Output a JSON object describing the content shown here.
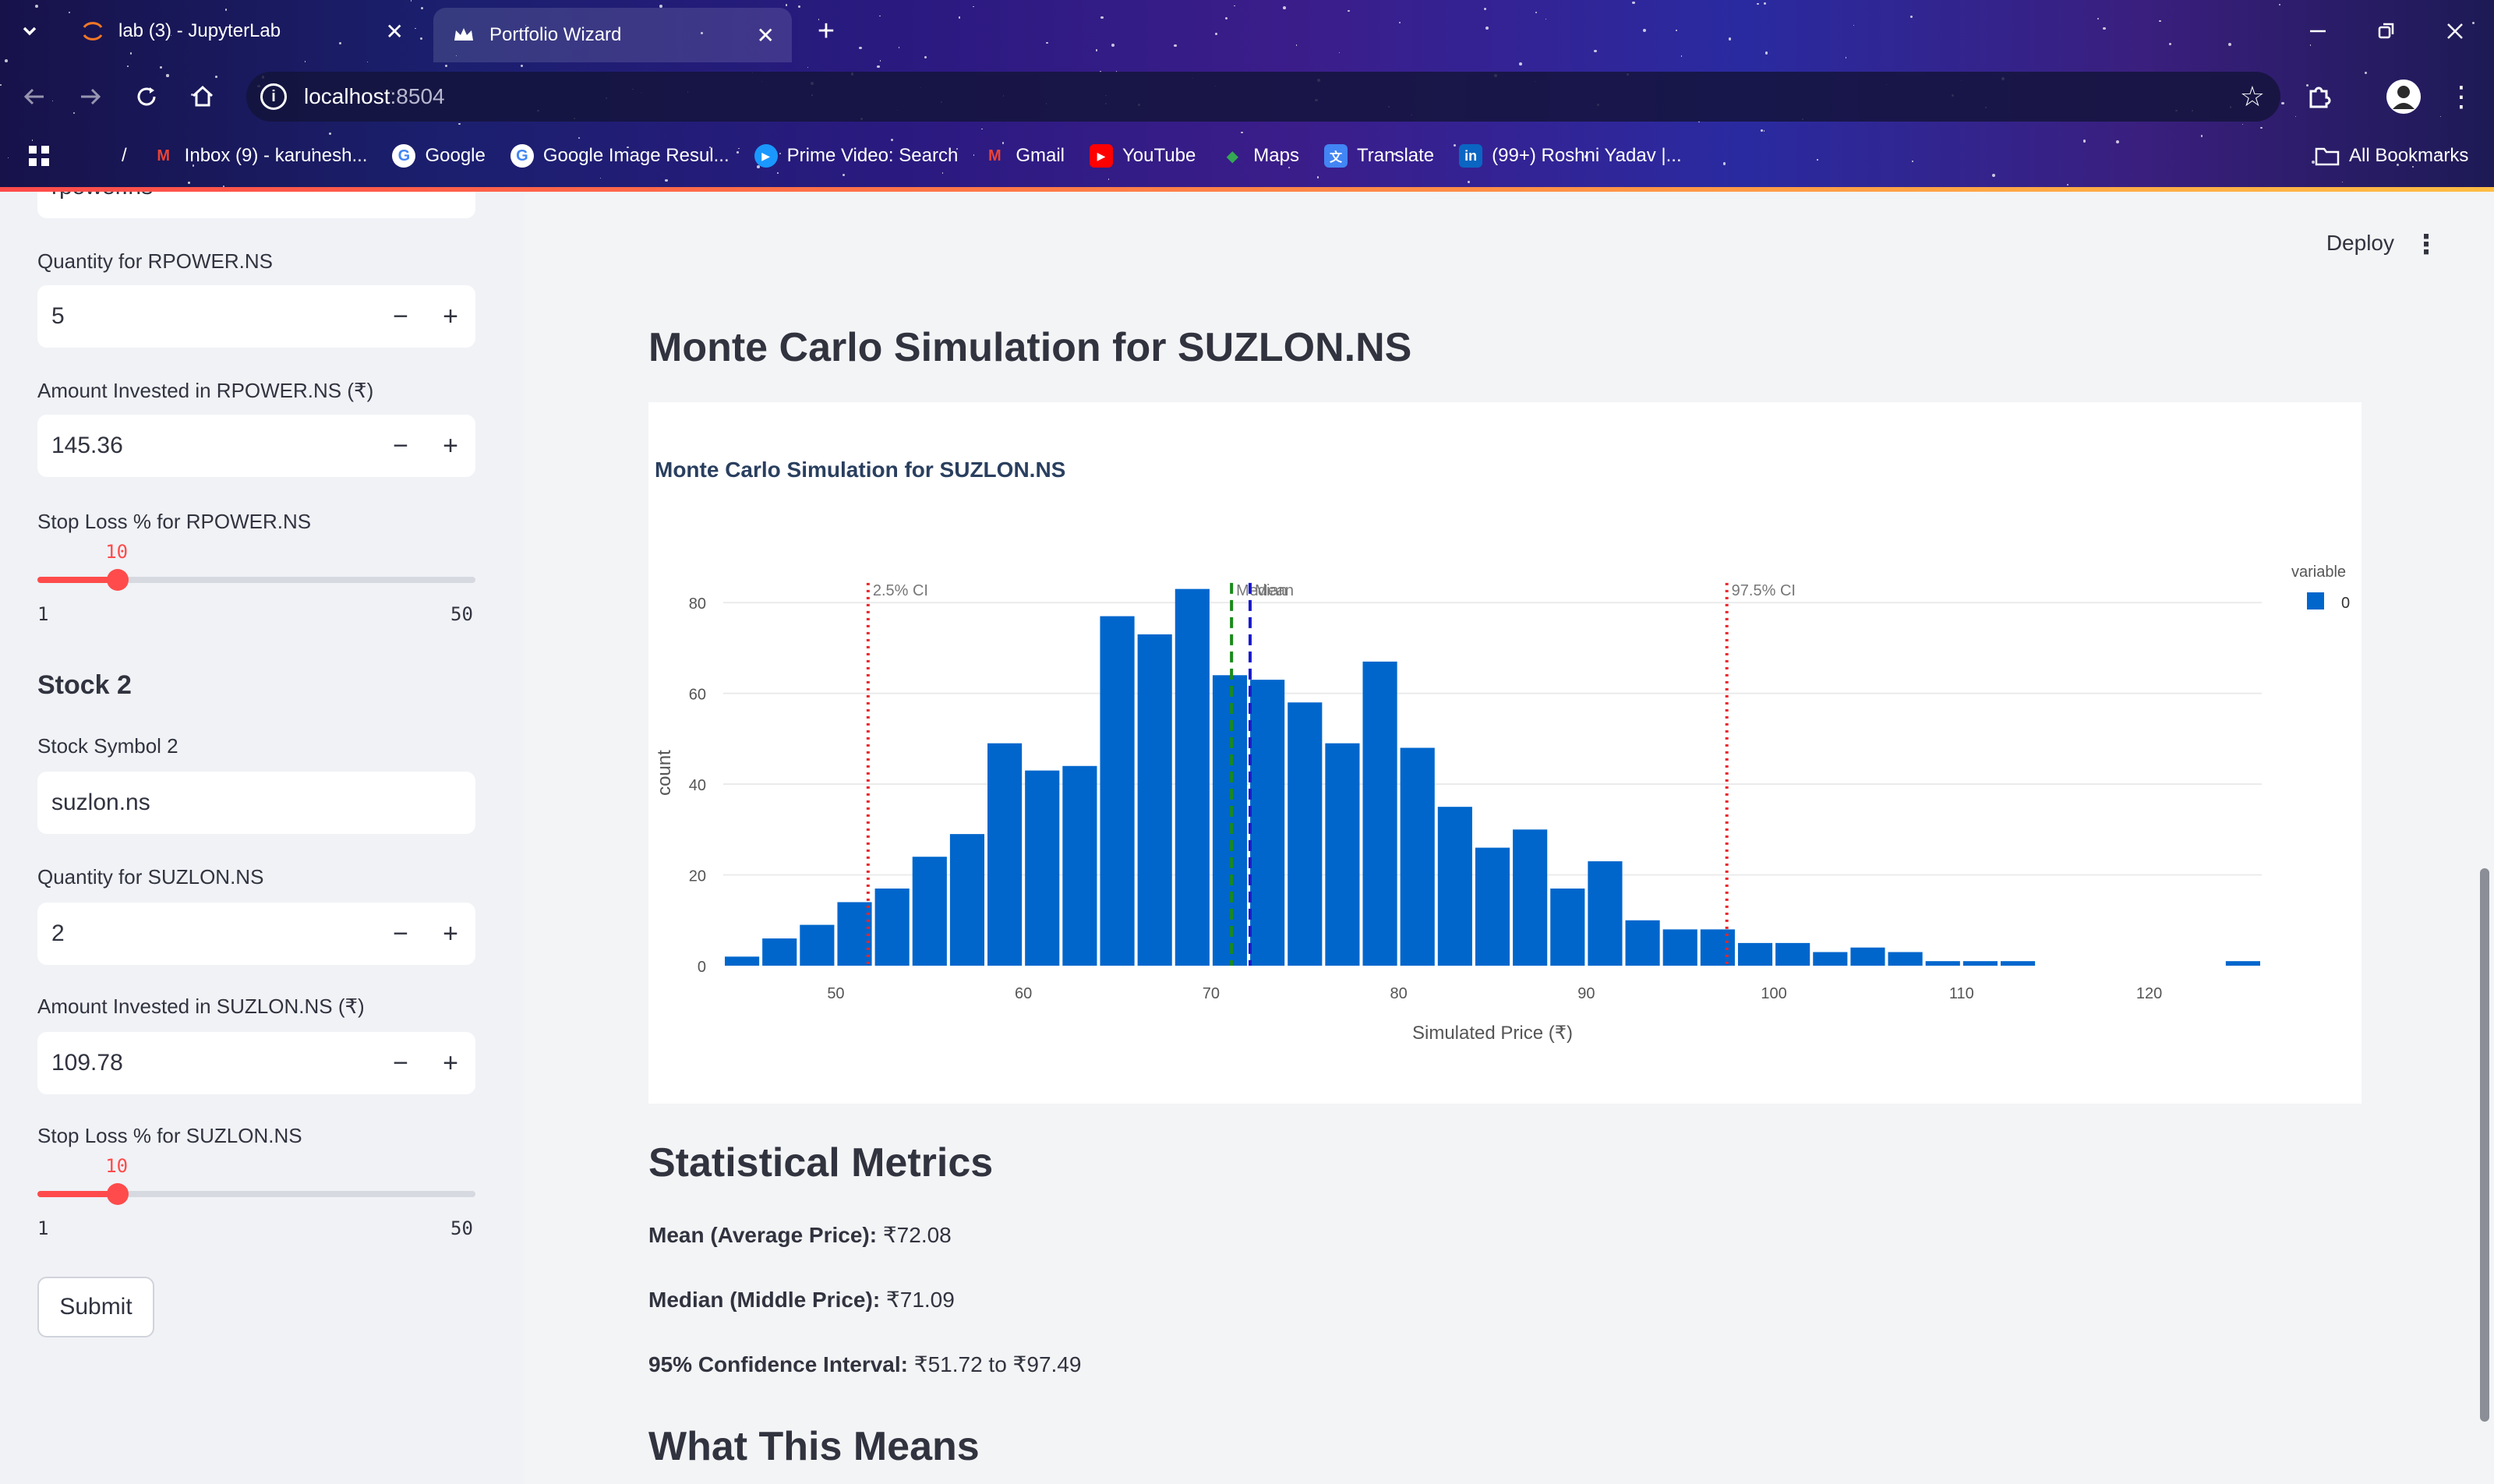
{
  "browser": {
    "tabs": [
      {
        "title": "lab (3) - JupyterLab",
        "active": false
      },
      {
        "title": "Portfolio Wizard",
        "active": true
      }
    ],
    "url_host": "localhost",
    "url_port": ":8504",
    "bookmarks": [
      {
        "label": "/",
        "icon": "folder-icon",
        "color": "#1a8a4a"
      },
      {
        "label": "Inbox (9) - karunesh...",
        "icon": "gmail-icon",
        "color": "#ea4335"
      },
      {
        "label": "Google",
        "icon": "google-icon",
        "color": "#ffffff"
      },
      {
        "label": "Google Image Resul...",
        "icon": "google-icon",
        "color": "#ffffff"
      },
      {
        "label": "Prime Video: Search",
        "icon": "prime-icon",
        "color": "#1a98ff"
      },
      {
        "label": "Gmail",
        "icon": "gmail-icon",
        "color": "#ea4335"
      },
      {
        "label": "YouTube",
        "icon": "youtube-icon",
        "color": "#ff0000"
      },
      {
        "label": "Maps",
        "icon": "maps-icon",
        "color": "#34a853"
      },
      {
        "label": "Translate",
        "icon": "translate-icon",
        "color": "#4285f4"
      },
      {
        "label": "(99+) Roshni Yadav |...",
        "icon": "linkedin-icon",
        "color": "#0a66c2"
      }
    ],
    "all_bookmarks": "All Bookmarks"
  },
  "sidebar": {
    "top_input_partial": "rpower.ns",
    "rpower": {
      "quantity_label": "Quantity for RPOWER.NS",
      "quantity_value": "5",
      "amount_label": "Amount Invested in RPOWER.NS (₹)",
      "amount_value": "145.36",
      "stoploss_label": "Stop Loss % for RPOWER.NS",
      "stoploss_value": "10",
      "stoploss_fraction": 0.1837,
      "min": "1",
      "max": "50"
    },
    "stock2_heading": "Stock 2",
    "suzlon": {
      "symbol_label": "Stock Symbol 2",
      "symbol_value": "suzlon.ns",
      "quantity_label": "Quantity for SUZLON.NS",
      "quantity_value": "2",
      "amount_label": "Amount Invested in SUZLON.NS (₹)",
      "amount_value": "109.78",
      "stoploss_label": "Stop Loss % for SUZLON.NS",
      "stoploss_value": "10",
      "stoploss_fraction": 0.1837,
      "min": "1",
      "max": "50"
    },
    "submit_label": "Submit"
  },
  "main": {
    "deploy_label": "Deploy",
    "page_title": "Monte Carlo Simulation for SUZLON.NS",
    "metrics_heading": "Statistical Metrics",
    "mean_label": "Mean (Average Price):",
    "mean_value": " ₹72.08",
    "median_label": "Median (Middle Price):",
    "median_value": " ₹71.09",
    "ci_label": "95% Confidence Interval:",
    "ci_value": " ₹51.72 to ₹97.49",
    "what_heading": "What This Means"
  },
  "chart_data": {
    "type": "bar",
    "title": "Monte Carlo Simulation for SUZLON.NS",
    "xlabel": "Simulated Price (₹)",
    "ylabel": "count",
    "legend_title": "variable",
    "series": [
      {
        "name": "0",
        "color": "#0066cc"
      }
    ],
    "bin_width": 2,
    "bins": [
      {
        "x": 45,
        "count": 2
      },
      {
        "x": 47,
        "count": 6
      },
      {
        "x": 49,
        "count": 9
      },
      {
        "x": 51,
        "count": 14
      },
      {
        "x": 53,
        "count": 17
      },
      {
        "x": 55,
        "count": 24
      },
      {
        "x": 57,
        "count": 29
      },
      {
        "x": 59,
        "count": 49
      },
      {
        "x": 61,
        "count": 43
      },
      {
        "x": 63,
        "count": 44
      },
      {
        "x": 65,
        "count": 77
      },
      {
        "x": 67,
        "count": 73
      },
      {
        "x": 69,
        "count": 83
      },
      {
        "x": 71,
        "count": 64
      },
      {
        "x": 73,
        "count": 63
      },
      {
        "x": 75,
        "count": 58
      },
      {
        "x": 77,
        "count": 49
      },
      {
        "x": 79,
        "count": 67
      },
      {
        "x": 81,
        "count": 48
      },
      {
        "x": 83,
        "count": 35
      },
      {
        "x": 85,
        "count": 26
      },
      {
        "x": 87,
        "count": 30
      },
      {
        "x": 89,
        "count": 17
      },
      {
        "x": 91,
        "count": 23
      },
      {
        "x": 93,
        "count": 10
      },
      {
        "x": 95,
        "count": 8
      },
      {
        "x": 97,
        "count": 8
      },
      {
        "x": 99,
        "count": 5
      },
      {
        "x": 101,
        "count": 5
      },
      {
        "x": 103,
        "count": 3
      },
      {
        "x": 105,
        "count": 4
      },
      {
        "x": 107,
        "count": 3
      },
      {
        "x": 109,
        "count": 1
      },
      {
        "x": 111,
        "count": 1
      },
      {
        "x": 113,
        "count": 1
      },
      {
        "x": 125,
        "count": 1
      }
    ],
    "xlim": [
      44,
      126
    ],
    "ylim": [
      0,
      85
    ],
    "xticks": [
      50,
      60,
      70,
      80,
      90,
      100,
      110,
      120
    ],
    "yticks": [
      0,
      20,
      40,
      60,
      80
    ],
    "vlines": [
      {
        "x": 51.72,
        "label": "2.5% CI",
        "color": "#e8262a",
        "style": "dot"
      },
      {
        "x": 71.09,
        "label": "Median",
        "color": "#1a8a1a",
        "style": "dash"
      },
      {
        "x": 72.08,
        "label": "Mean",
        "color": "#1a1acc",
        "style": "dash"
      },
      {
        "x": 97.49,
        "label": "97.5% CI",
        "color": "#e8262a",
        "style": "dot"
      }
    ],
    "grid": true,
    "legend_position": "top-right"
  }
}
